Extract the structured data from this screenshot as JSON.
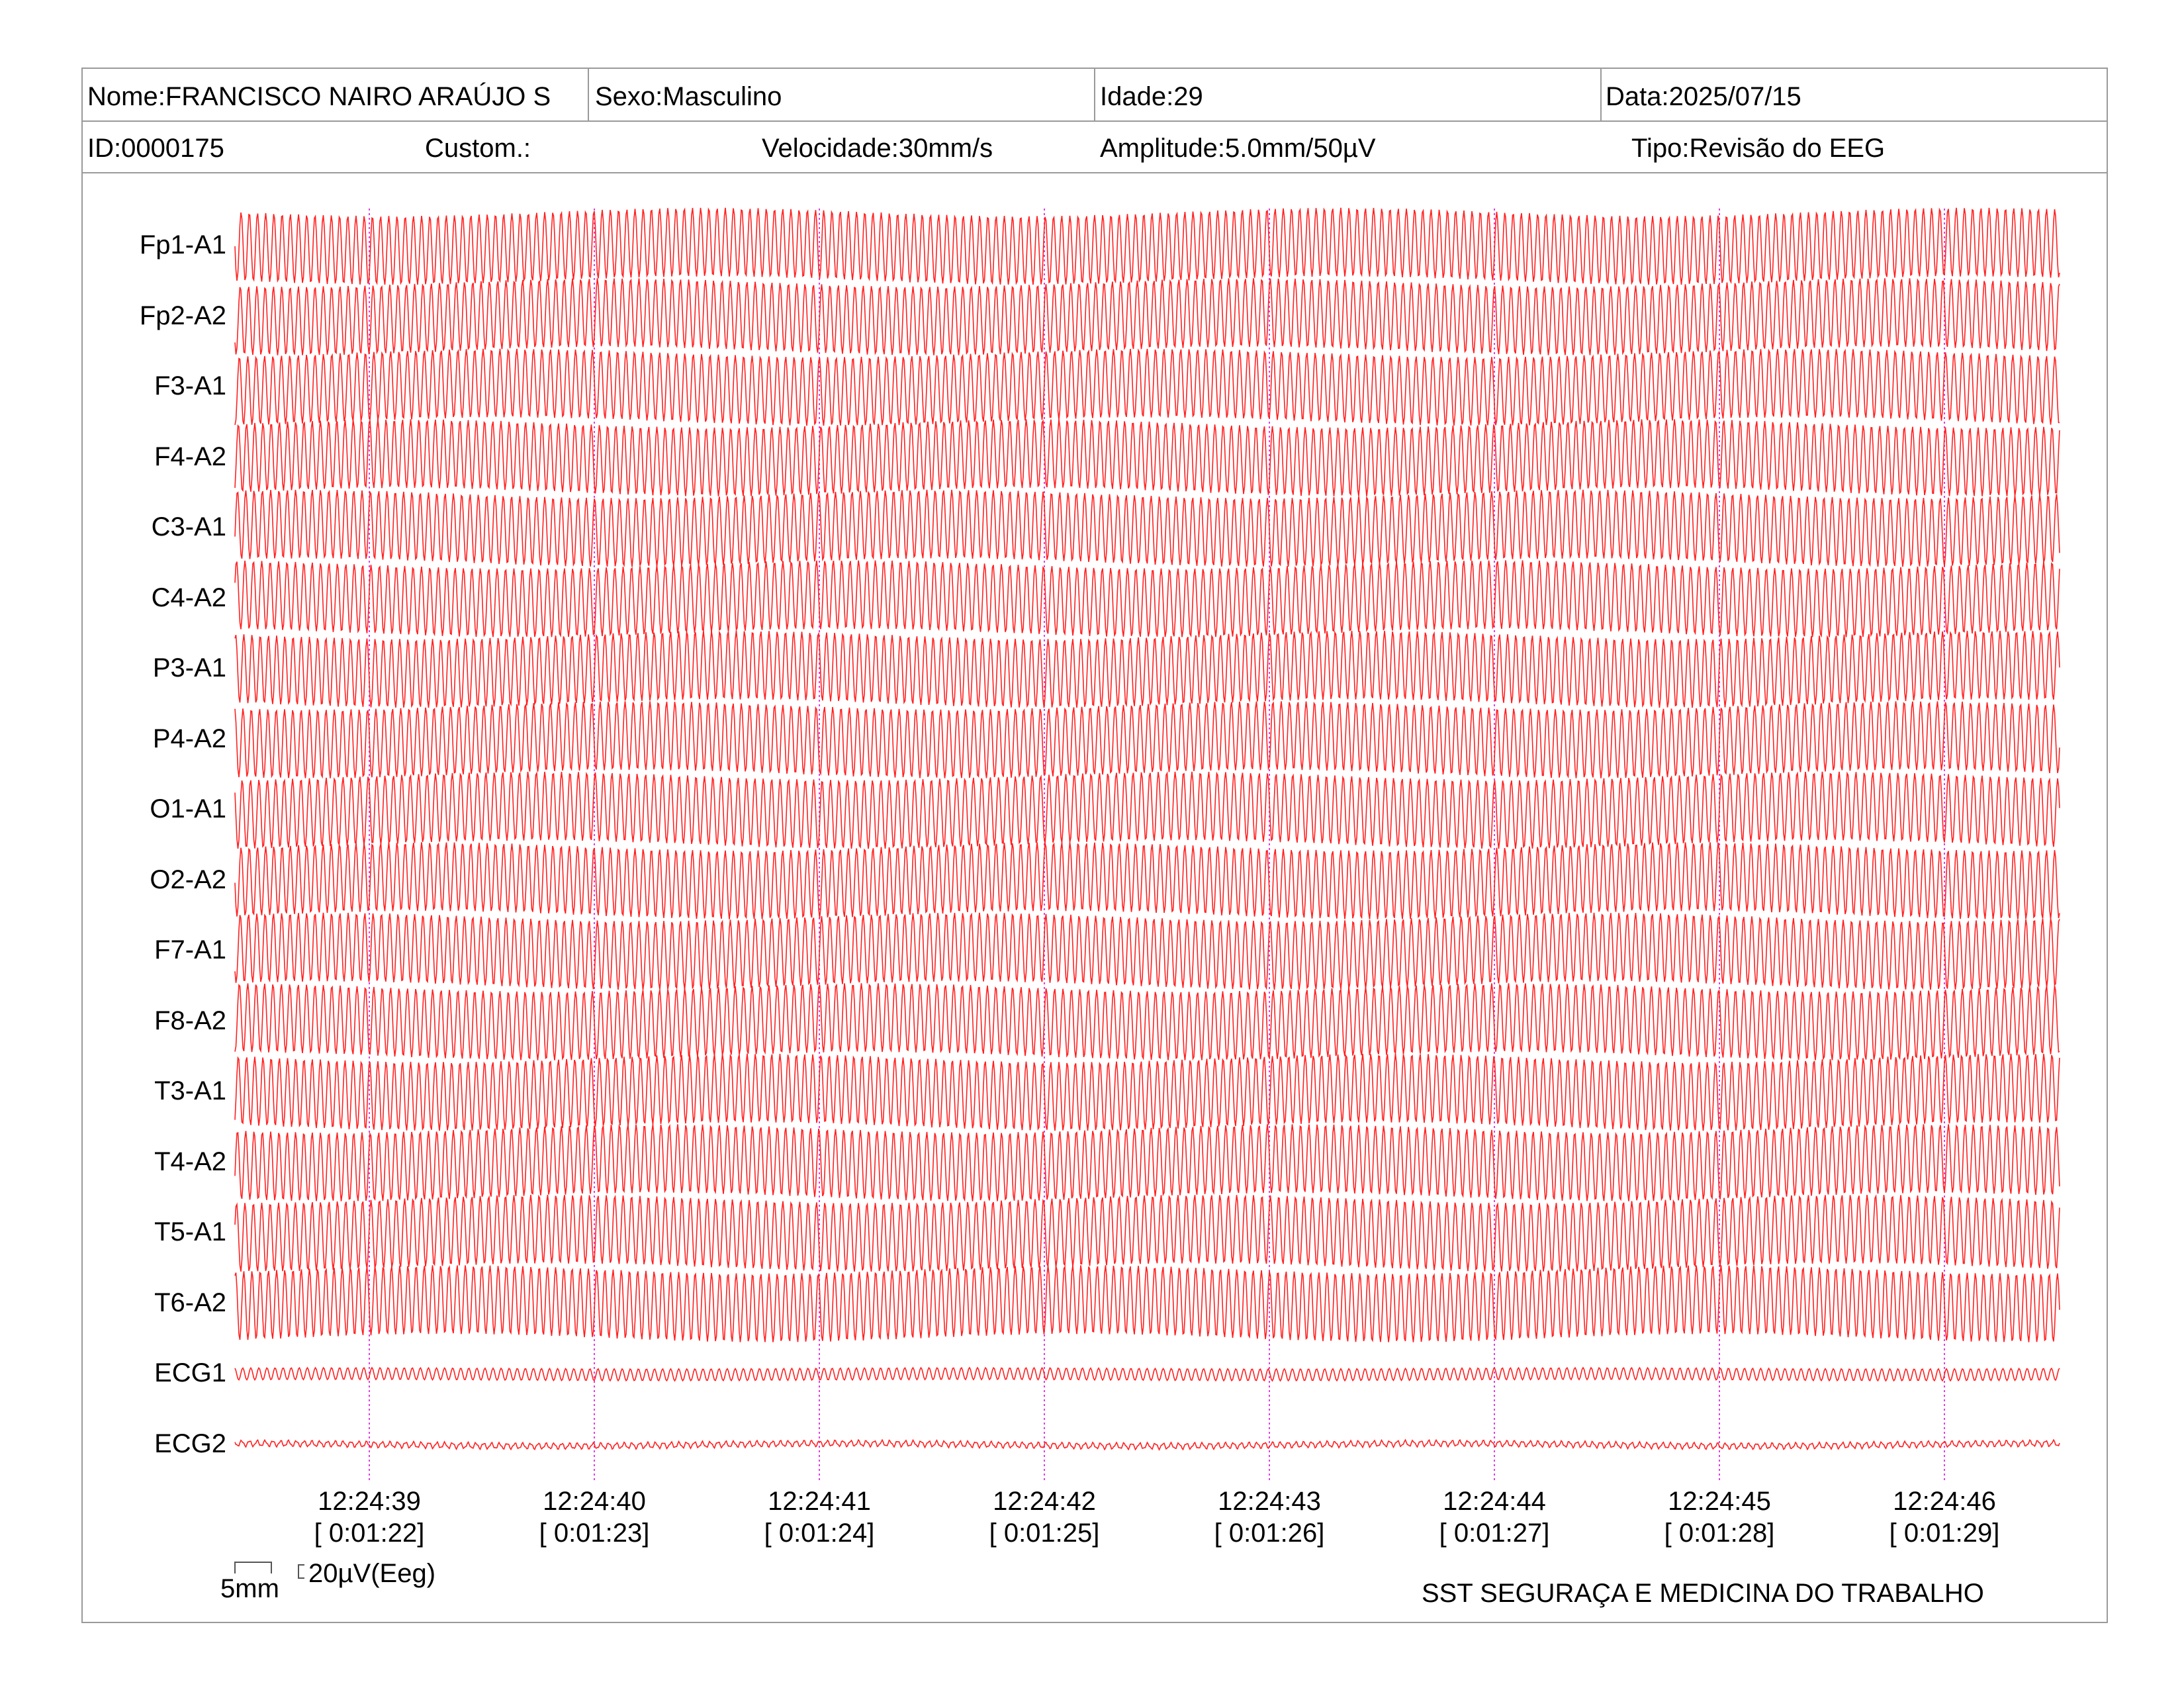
{
  "header": {
    "nome": "Nome:FRANCISCO NAIRO ARAÚJO S",
    "sexo": "Sexo:Masculino",
    "idade": "Idade:29",
    "data": "Data:2025/07/15",
    "id": "ID:0000175",
    "custom": "Custom.:",
    "velocidade": "Velocidade:30mm/s",
    "amplitude": "Amplitude:5.0mm/50µV",
    "tipo": "Tipo:Revisão do EEG"
  },
  "channels": [
    "Fp1-A1",
    "Fp2-A2",
    "F3-A1",
    "F4-A2",
    "C3-A1",
    "C4-A2",
    "P3-A1",
    "P4-A2",
    "O1-A1",
    "O2-A2",
    "F7-A1",
    "F8-A2",
    "T3-A1",
    "T4-A2",
    "T5-A1",
    "T6-A2",
    "ECG1",
    "ECG2"
  ],
  "time_marks": [
    {
      "clock": "12:24:39",
      "elapsed": "[ 0:01:22]"
    },
    {
      "clock": "12:24:40",
      "elapsed": "[ 0:01:23]"
    },
    {
      "clock": "12:24:41",
      "elapsed": "[ 0:01:24]"
    },
    {
      "clock": "12:24:42",
      "elapsed": "[ 0:01:25]"
    },
    {
      "clock": "12:24:43",
      "elapsed": "[ 0:01:26]"
    },
    {
      "clock": "12:24:44",
      "elapsed": "[ 0:01:27]"
    },
    {
      "clock": "12:24:45",
      "elapsed": "[ 0:01:28]"
    },
    {
      "clock": "12:24:46",
      "elapsed": "[ 0:01:29]"
    }
  ],
  "scale": {
    "time_bar": "5mm",
    "amplitude_bar": "20µV(Eeg)"
  },
  "footer": {
    "company": "SST SEGURAÇA E MEDICINA DO TRABALHO"
  },
  "colors": {
    "trace": "#ff2020",
    "second_marker": "#e040e0",
    "frame": "#9a9a9a"
  }
}
